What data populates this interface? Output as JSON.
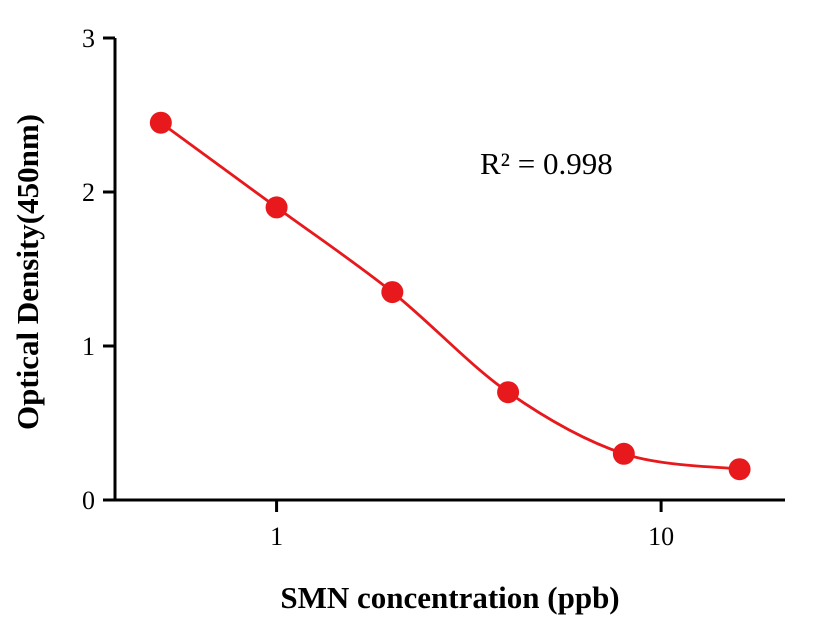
{
  "chart_data": {
    "type": "scatter",
    "title": "",
    "xlabel": "SMN concentration (ppb)",
    "ylabel": "Optical Density(450nm)",
    "annotation": "R² = 0.998",
    "x_scale": "log",
    "x": [
      0.5,
      1,
      2,
      4,
      8,
      16
    ],
    "y": [
      2.45,
      1.9,
      1.35,
      0.7,
      0.3,
      0.2
    ],
    "xlim": [
      0.38,
      21
    ],
    "ylim": [
      0,
      3
    ],
    "x_ticks": [
      1,
      10
    ],
    "y_ticks": [
      0,
      1,
      2,
      3
    ],
    "grid": false,
    "legend": "none",
    "marker_color": "#e8191c",
    "line_color": "#e8191c",
    "axis_color": "#000000",
    "tick_font_size": 26,
    "marker_radius": 11
  }
}
